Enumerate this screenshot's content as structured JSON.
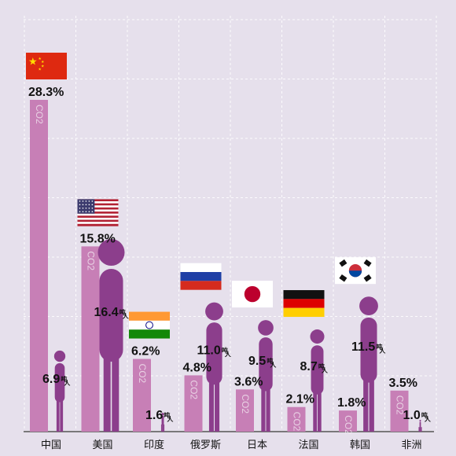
{
  "chart_data": {
    "type": "bar",
    "categories": [
      "中国",
      "美国",
      "印度",
      "俄罗斯",
      "日本",
      "法国",
      "韩国",
      "非洲"
    ],
    "series": [
      {
        "values": [
          28.3,
          15.8,
          6.2,
          4.8,
          3.6,
          2.1,
          1.8,
          3.5
        ],
        "display": [
          "28.3%",
          "15.8%",
          "6.2%",
          "4.8%",
          "3.6%",
          "2.1%",
          "1.8%",
          "3.5%"
        ]
      },
      {
        "values": [
          6.9,
          16.4,
          1.6,
          11.0,
          9.5,
          8.7,
          11.5,
          1.0
        ],
        "display": [
          "6.9",
          "16.4",
          "1.6",
          "11.0",
          "9.5",
          "8.7",
          "11.5",
          "1.0"
        ]
      }
    ],
    "per_capita_unit": "吨",
    "per_capita_unit_sub": "人",
    "bar_label": "CO2",
    "flags": [
      "china",
      "usa",
      "india",
      "russia",
      "japan",
      "germany",
      "korea",
      null
    ],
    "grid": true
  },
  "colors": {
    "background": "#e6e0ec",
    "share_bar": "#c77fb6",
    "person": "#8c3e8c",
    "grid": "#ffffff",
    "axis": "#555555",
    "text": "#111111"
  }
}
